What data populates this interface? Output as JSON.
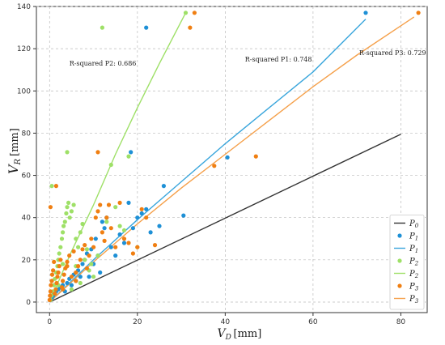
{
  "chart_data": {
    "type": "scatter",
    "xlabel": "V_D [mm]",
    "ylabel": "V_R [mm]",
    "xlim": [
      -3,
      86
    ],
    "ylim": [
      -5,
      140
    ],
    "xticks": [
      0,
      20,
      40,
      60,
      80
    ],
    "yticks": [
      0,
      20,
      40,
      60,
      80,
      100,
      120,
      140
    ],
    "grid": true,
    "legend_position": "bottom-right",
    "legend": [
      {
        "label": "P0",
        "kind": "line",
        "color": "#333333"
      },
      {
        "label": "P1",
        "kind": "marker",
        "color": "#1e90d6"
      },
      {
        "label": "P1",
        "kind": "line",
        "color": "#3aa6dc"
      },
      {
        "label": "P2",
        "kind": "marker",
        "color": "#9ee067"
      },
      {
        "label": "P2",
        "kind": "line",
        "color": "#9ee067"
      },
      {
        "label": "P3",
        "kind": "marker",
        "color": "#f07f12"
      },
      {
        "label": "P3",
        "kind": "line",
        "color": "#f5a04a"
      }
    ],
    "annotations": [
      {
        "text": "R-squared P2: 0.686",
        "x": 4.5,
        "y": 112
      },
      {
        "text": "R-squared P1: 0.748",
        "x": 44.5,
        "y": 114
      },
      {
        "text": "R-squared P3: 0.729",
        "x": 70.5,
        "y": 117
      }
    ],
    "lines": [
      {
        "name": "P0",
        "color": "#333333",
        "points": [
          [
            0,
            0
          ],
          [
            80,
            79.5
          ]
        ]
      },
      {
        "name": "P1",
        "color": "#3aa6dc",
        "points": [
          [
            0,
            0
          ],
          [
            10,
            20
          ],
          [
            20,
            39
          ],
          [
            30,
            57
          ],
          [
            40,
            75
          ],
          [
            50,
            92
          ],
          [
            60,
            109
          ],
          [
            72,
            134
          ]
        ]
      },
      {
        "name": "P2",
        "color": "#9ee067",
        "points": [
          [
            0,
            0
          ],
          [
            5,
            24
          ],
          [
            10,
            46
          ],
          [
            15,
            70
          ],
          [
            20,
            92
          ],
          [
            25,
            113
          ],
          [
            31,
            137
          ]
        ]
      },
      {
        "name": "P3",
        "color": "#f5a04a",
        "points": [
          [
            0,
            0
          ],
          [
            10,
            19
          ],
          [
            20,
            37
          ],
          [
            30,
            54
          ],
          [
            40,
            70
          ],
          [
            50,
            86
          ],
          [
            60,
            102
          ],
          [
            70,
            117
          ],
          [
            83,
            135
          ]
        ]
      }
    ],
    "series": [
      {
        "name": "P1",
        "color": "#1e90d6",
        "points": [
          [
            0.2,
            1
          ],
          [
            0.5,
            2
          ],
          [
            0.8,
            3
          ],
          [
            1,
            4
          ],
          [
            1.5,
            5
          ],
          [
            2,
            6
          ],
          [
            2.5,
            7
          ],
          [
            3,
            8
          ],
          [
            3.5,
            5
          ],
          [
            4,
            9
          ],
          [
            4.5,
            11
          ],
          [
            5,
            8
          ],
          [
            5.5,
            13
          ],
          [
            6,
            10
          ],
          [
            6.5,
            15
          ],
          [
            7,
            12
          ],
          [
            7.5,
            18
          ],
          [
            8,
            20
          ],
          [
            8.5,
            23
          ],
          [
            9,
            12
          ],
          [
            9.5,
            25
          ],
          [
            10,
            18
          ],
          [
            10.5,
            30
          ],
          [
            11,
            22
          ],
          [
            11.5,
            14
          ],
          [
            12,
            38
          ],
          [
            12.5,
            35
          ],
          [
            13,
            40
          ],
          [
            14,
            26
          ],
          [
            15,
            22
          ],
          [
            16,
            32
          ],
          [
            17,
            28
          ],
          [
            18,
            47
          ],
          [
            19,
            35
          ],
          [
            20,
            40
          ],
          [
            21,
            42
          ],
          [
            22,
            44
          ],
          [
            23,
            33
          ],
          [
            25,
            36
          ],
          [
            26,
            55
          ],
          [
            30.5,
            41
          ],
          [
            40.5,
            68.5
          ],
          [
            72,
            137
          ],
          [
            22,
            130
          ],
          [
            18.5,
            71
          ]
        ]
      },
      {
        "name": "P2",
        "color": "#9ee067",
        "points": [
          [
            0.2,
            1
          ],
          [
            0.4,
            3
          ],
          [
            0.7,
            5
          ],
          [
            1,
            8
          ],
          [
            1.2,
            11
          ],
          [
            1.5,
            14
          ],
          [
            1.8,
            17
          ],
          [
            2,
            20
          ],
          [
            2.2,
            23
          ],
          [
            2.5,
            26
          ],
          [
            2.8,
            30
          ],
          [
            3,
            33
          ],
          [
            3.2,
            36
          ],
          [
            3.5,
            38
          ],
          [
            3.8,
            42
          ],
          [
            4,
            45
          ],
          [
            4.3,
            47
          ],
          [
            4.6,
            40
          ],
          [
            5,
            43
          ],
          [
            5.5,
            46
          ],
          [
            6,
            30
          ],
          [
            6.5,
            26
          ],
          [
            7,
            33
          ],
          [
            7.5,
            37
          ],
          [
            8,
            20
          ],
          [
            8.5,
            25
          ],
          [
            9,
            15
          ],
          [
            9.5,
            18
          ],
          [
            10,
            12
          ],
          [
            11,
            22
          ],
          [
            12,
            130
          ],
          [
            13,
            38
          ],
          [
            14,
            65
          ],
          [
            15,
            45
          ],
          [
            16,
            36
          ],
          [
            17,
            34
          ],
          [
            18,
            69
          ],
          [
            20,
            26
          ],
          [
            31,
            137
          ],
          [
            0.5,
            55
          ],
          [
            4,
            71
          ],
          [
            6,
            17
          ],
          [
            2,
            8
          ],
          [
            3,
            18
          ],
          [
            5,
            6
          ],
          [
            7,
            9
          ]
        ]
      },
      {
        "name": "P3",
        "color": "#f07f12",
        "points": [
          [
            0,
            1
          ],
          [
            0.1,
            3
          ],
          [
            0.2,
            5
          ],
          [
            0.3,
            8
          ],
          [
            0.5,
            10
          ],
          [
            0.6,
            13
          ],
          [
            0.8,
            15
          ],
          [
            1,
            19
          ],
          [
            1.2,
            4
          ],
          [
            1.4,
            6
          ],
          [
            1.6,
            9
          ],
          [
            1.8,
            12
          ],
          [
            2,
            14
          ],
          [
            2.2,
            17
          ],
          [
            2.5,
            20
          ],
          [
            2.8,
            7
          ],
          [
            3,
            10
          ],
          [
            3.3,
            13
          ],
          [
            3.6,
            16
          ],
          [
            4,
            19
          ],
          [
            4.5,
            22
          ],
          [
            5,
            12
          ],
          [
            5.5,
            24
          ],
          [
            6,
            14
          ],
          [
            6.5,
            17
          ],
          [
            7,
            20
          ],
          [
            7.5,
            25
          ],
          [
            8,
            27
          ],
          [
            8.5,
            16
          ],
          [
            9,
            22
          ],
          [
            9.5,
            30
          ],
          [
            10,
            26
          ],
          [
            10.5,
            40
          ],
          [
            11,
            43
          ],
          [
            11.5,
            46
          ],
          [
            12,
            33
          ],
          [
            12.5,
            29
          ],
          [
            13,
            40
          ],
          [
            13.5,
            46
          ],
          [
            14,
            35
          ],
          [
            15,
            26
          ],
          [
            16,
            47
          ],
          [
            17,
            30
          ],
          [
            18,
            28
          ],
          [
            19,
            23
          ],
          [
            20,
            26
          ],
          [
            21,
            44
          ],
          [
            22,
            40
          ],
          [
            24,
            27
          ],
          [
            11,
            71
          ],
          [
            32,
            130
          ],
          [
            33,
            137
          ],
          [
            37.5,
            64.5
          ],
          [
            47,
            69
          ],
          [
            84,
            137
          ],
          [
            0.2,
            45
          ],
          [
            1.5,
            55
          ],
          [
            6,
            10
          ],
          [
            4,
            17
          ],
          [
            3,
            6
          ]
        ]
      }
    ]
  }
}
